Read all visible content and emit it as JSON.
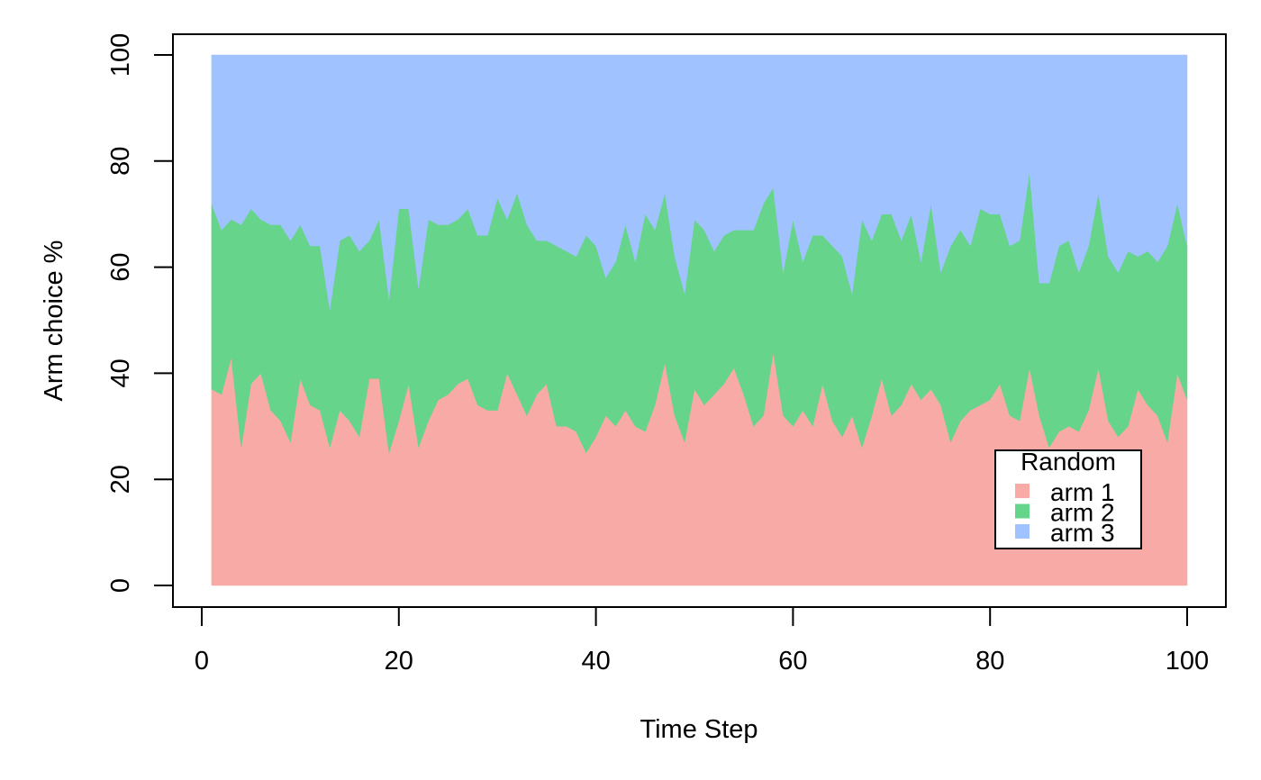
{
  "chart_data": {
    "type": "area",
    "stacked": true,
    "xlabel": "Time Step",
    "ylabel": "Arm choice %",
    "xlim": [
      1,
      100
    ],
    "ylim": [
      0,
      100
    ],
    "x_ticks": [
      0,
      20,
      40,
      60,
      80,
      100
    ],
    "y_ticks": [
      0,
      20,
      40,
      60,
      80,
      100
    ],
    "grid": false,
    "legend": {
      "title": "Random",
      "placement": "bottom-right",
      "entries": [
        "arm 1",
        "arm 2",
        "arm 3"
      ]
    },
    "x": [
      1,
      2,
      3,
      4,
      5,
      6,
      7,
      8,
      9,
      10,
      11,
      12,
      13,
      14,
      15,
      16,
      17,
      18,
      19,
      20,
      21,
      22,
      23,
      24,
      25,
      26,
      27,
      28,
      29,
      30,
      31,
      32,
      33,
      34,
      35,
      36,
      37,
      38,
      39,
      40,
      41,
      42,
      43,
      44,
      45,
      46,
      47,
      48,
      49,
      50,
      51,
      52,
      53,
      54,
      55,
      56,
      57,
      58,
      59,
      60,
      61,
      62,
      63,
      64,
      65,
      66,
      67,
      68,
      69,
      70,
      71,
      72,
      73,
      74,
      75,
      76,
      77,
      78,
      79,
      80,
      81,
      82,
      83,
      84,
      85,
      86,
      87,
      88,
      89,
      90,
      91,
      92,
      93,
      94,
      95,
      96,
      97,
      98,
      99,
      100
    ],
    "series": [
      {
        "name": "arm 1",
        "color": "#F8ABA6",
        "values": [
          37,
          36,
          43,
          26,
          38,
          40,
          33,
          31,
          27,
          39,
          34,
          33,
          26,
          33,
          31,
          28,
          39,
          39,
          25,
          31,
          38,
          26,
          31,
          35,
          36,
          38,
          39,
          34,
          33,
          33,
          40,
          36,
          32,
          36,
          38,
          30,
          30,
          29,
          25,
          28,
          32,
          30,
          33,
          30,
          29,
          34,
          42,
          32,
          27,
          37,
          34,
          36,
          38,
          41,
          36,
          30,
          32,
          44,
          32,
          30,
          33,
          30,
          38,
          31,
          28,
          32,
          26,
          32,
          39,
          32,
          34,
          38,
          35,
          37,
          34,
          27,
          31,
          33,
          34,
          35,
          38,
          32,
          31,
          41,
          32,
          26,
          29,
          30,
          29,
          33,
          41,
          31,
          28,
          30,
          37,
          34,
          32,
          27,
          40,
          35
        ]
      },
      {
        "name": "arm 2",
        "color": "#66D48A",
        "values": [
          35,
          31,
          26,
          42,
          33,
          29,
          35,
          37,
          38,
          29,
          30,
          31,
          26,
          32,
          35,
          35,
          26,
          30,
          29,
          40,
          33,
          30,
          38,
          33,
          32,
          31,
          32,
          32,
          33,
          40,
          29,
          38,
          36,
          29,
          27,
          34,
          33,
          33,
          41,
          36,
          26,
          31,
          35,
          31,
          41,
          33,
          32,
          30,
          28,
          32,
          33,
          27,
          28,
          26,
          31,
          37,
          40,
          31,
          27,
          39,
          28,
          36,
          28,
          33,
          34,
          23,
          43,
          33,
          31,
          38,
          31,
          32,
          26,
          35,
          25,
          37,
          36,
          31,
          37,
          35,
          32,
          32,
          34,
          37,
          25,
          31,
          35,
          35,
          30,
          31,
          33,
          31,
          31,
          33,
          25,
          29,
          29,
          37,
          32,
          29
        ]
      },
      {
        "name": "arm 3",
        "color": "#A0C2FF",
        "values": [
          28,
          33,
          31,
          32,
          29,
          31,
          32,
          32,
          35,
          32,
          36,
          36,
          48,
          35,
          34,
          37,
          35,
          31,
          46,
          29,
          29,
          44,
          31,
          32,
          32,
          31,
          29,
          34,
          34,
          27,
          31,
          26,
          32,
          35,
          35,
          36,
          37,
          38,
          34,
          36,
          42,
          39,
          32,
          39,
          30,
          33,
          26,
          38,
          45,
          31,
          33,
          37,
          34,
          33,
          33,
          33,
          28,
          25,
          41,
          31,
          39,
          34,
          34,
          36,
          38,
          45,
          31,
          35,
          30,
          30,
          35,
          30,
          39,
          28,
          41,
          36,
          33,
          36,
          29,
          30,
          30,
          36,
          35,
          22,
          43,
          43,
          36,
          35,
          41,
          36,
          26,
          38,
          41,
          37,
          38,
          37,
          39,
          36,
          28,
          36
        ]
      }
    ]
  }
}
